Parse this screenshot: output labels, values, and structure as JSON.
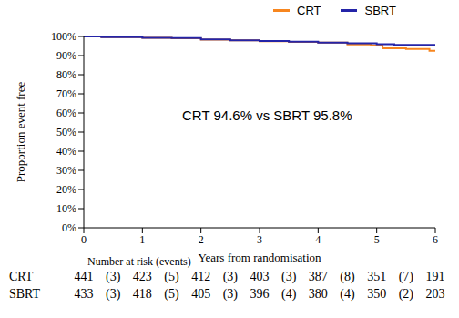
{
  "chart_data": {
    "type": "line",
    "xlabel": "Years from randomisation",
    "ylabel": "Proportion event free",
    "annotation": "CRT 94.6% vs SBRT 95.8%",
    "xlim": [
      0,
      6
    ],
    "xticks": [
      0,
      1,
      2,
      3,
      4,
      5,
      6
    ],
    "ylim": [
      0,
      100
    ],
    "yticks": [
      {
        "value": 0,
        "label": "0%"
      },
      {
        "value": 10,
        "label": "10%"
      },
      {
        "value": 20,
        "label": "20%"
      },
      {
        "value": 30,
        "label": "30%"
      },
      {
        "value": 40,
        "label": "40%"
      },
      {
        "value": 50,
        "label": "50%"
      },
      {
        "value": 60,
        "label": "60%"
      },
      {
        "value": 70,
        "label": "70%"
      },
      {
        "value": 80,
        "label": "80%"
      },
      {
        "value": 90,
        "label": "90%"
      },
      {
        "value": 100,
        "label": "100%"
      }
    ],
    "grid": false,
    "legend": "top",
    "line_style": "step",
    "series": [
      {
        "name": "CRT",
        "color": "#f7861f",
        "x": [
          0,
          0.3,
          1,
          1.5,
          2,
          2.5,
          3,
          3.5,
          4,
          4.5,
          4.9,
          5.1,
          5.5,
          5.9,
          6
        ],
        "values": [
          100,
          99.7,
          99.3,
          99,
          98.3,
          98,
          97.5,
          97.2,
          96.8,
          95.8,
          95.3,
          93.8,
          93.5,
          92.5,
          92
        ]
      },
      {
        "name": "SBRT",
        "color": "#2424a8",
        "x": [
          0,
          0.3,
          1,
          1.5,
          2,
          2.5,
          3,
          3.5,
          4,
          4.5,
          5,
          5.3,
          6
        ],
        "values": [
          100,
          99.6,
          99.3,
          99.2,
          98.5,
          98,
          97.6,
          97.3,
          96.8,
          96.4,
          95.9,
          95.6,
          95
        ]
      }
    ],
    "risk_table": {
      "title": "Number at risk (events)",
      "rows": [
        {
          "name": "CRT",
          "at_risk": [
            441,
            423,
            412,
            403,
            387,
            351,
            191
          ],
          "events": [
            "(3)",
            "(5)",
            "(3)",
            "(3)",
            "(8)",
            "(7)"
          ]
        },
        {
          "name": "SBRT",
          "at_risk": [
            433,
            418,
            405,
            396,
            380,
            350,
            203
          ],
          "events": [
            "(3)",
            "(5)",
            "(3)",
            "(4)",
            "(4)",
            "(2)"
          ]
        }
      ]
    }
  }
}
